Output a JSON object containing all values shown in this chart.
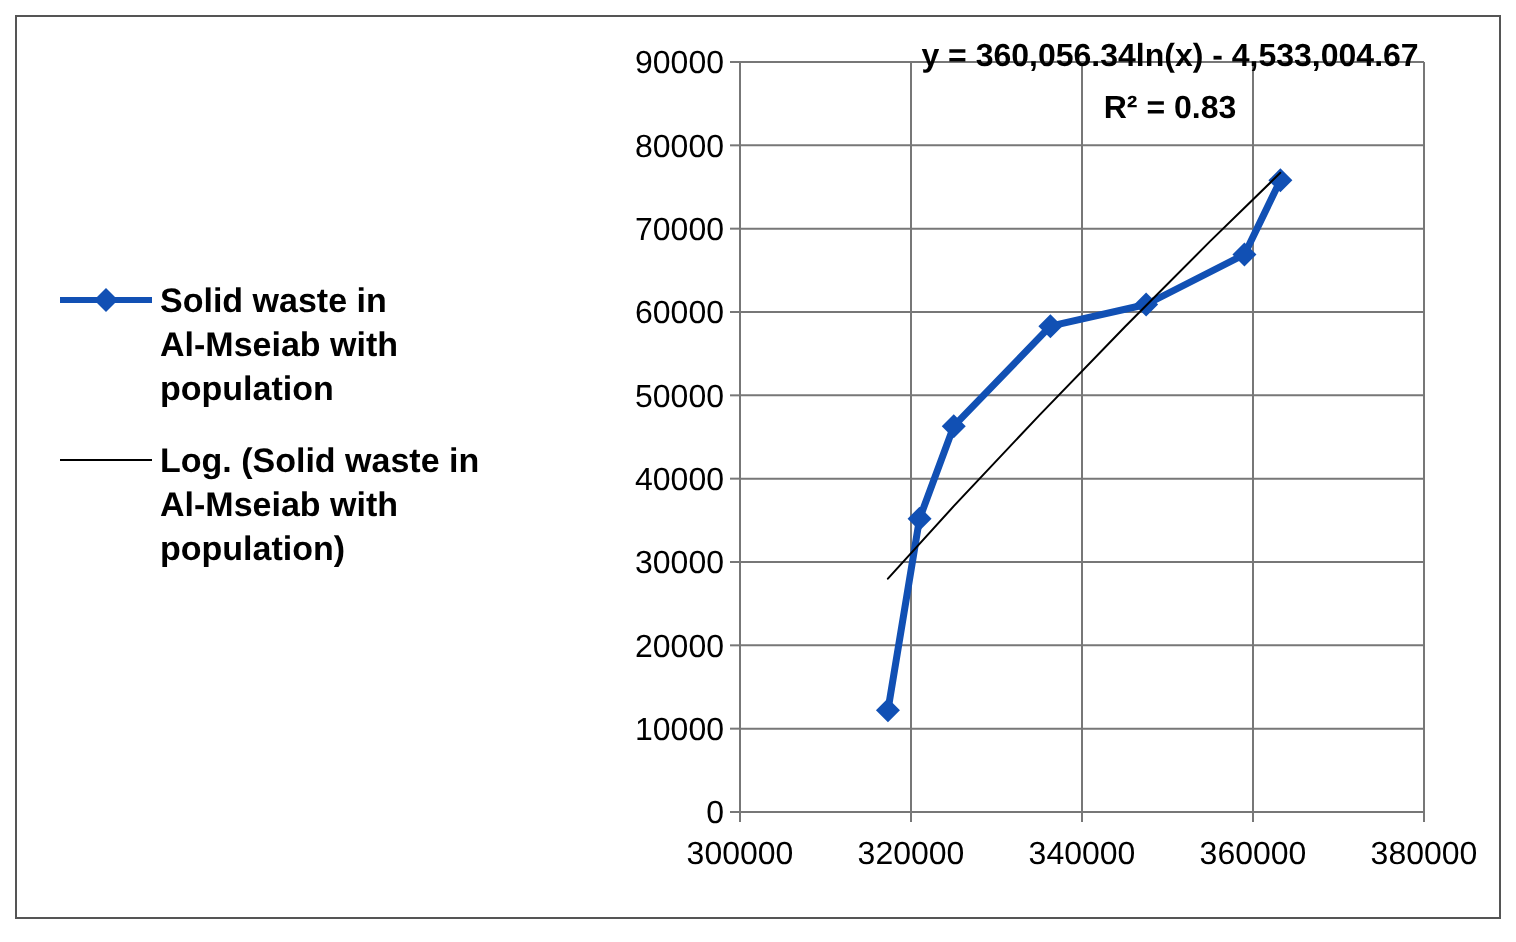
{
  "chart_data": {
    "type": "line",
    "series": [
      {
        "name": "Solid waste in Al-Mseiab with population",
        "color": "#1150b4",
        "marker": "diamond",
        "line_style": "solid",
        "x": [
          317300,
          321000,
          325000,
          336300,
          347500,
          359000,
          363200
        ],
        "values": [
          12200,
          35200,
          46300,
          58300,
          60900,
          66900,
          75800
        ]
      },
      {
        "name": "Log. (Solid waste in Al-Mseiab with population)",
        "color": "#000000",
        "marker": "none",
        "line_style": "solid",
        "x": [
          317300,
          325000,
          335000,
          345000,
          355000,
          363200
        ],
        "values": [
          28000,
          36700,
          47600,
          58200,
          68500,
          76700
        ]
      }
    ],
    "xlim": [
      300000,
      380000
    ],
    "xticks": [
      300000,
      320000,
      340000,
      360000,
      380000
    ],
    "ylim": [
      0,
      90000
    ],
    "yticks": [
      0,
      10000,
      20000,
      30000,
      40000,
      50000,
      60000,
      70000,
      80000,
      90000
    ],
    "grid": true,
    "legend": "left",
    "annotations": [
      "y = 360,056.34ln(x) - 4,533,004.67",
      "R² = 0.83"
    ]
  }
}
